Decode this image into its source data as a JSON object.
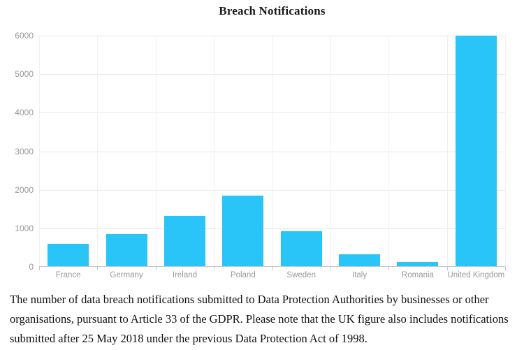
{
  "chart_data": {
    "type": "bar",
    "title": "Breach Notifications",
    "categories": [
      "France",
      "Germany",
      "Ireland",
      "Poland",
      "Sweden",
      "Italy",
      "Romania",
      "United Kingdom"
    ],
    "values": [
      600,
      850,
      1320,
      1850,
      920,
      320,
      120,
      6000
    ],
    "xlabel": "",
    "ylabel": "",
    "ylim": [
      0,
      6000
    ],
    "ytick_step": 1000,
    "y_tick_labels": [
      "0",
      "1000",
      "2000",
      "3000",
      "4000",
      "5000",
      "6000"
    ],
    "bar_color": "#29c4f8",
    "grid": true,
    "legend": "none"
  },
  "caption": "The number of data breach notifications submitted to Data Protection Authorities by businesses or other organisations, pursuant to Article 33 of the GDPR. Please note that the UK figure also includes notifications submitted after 25 May 2018 under the previous Data Protection Act of 1998."
}
